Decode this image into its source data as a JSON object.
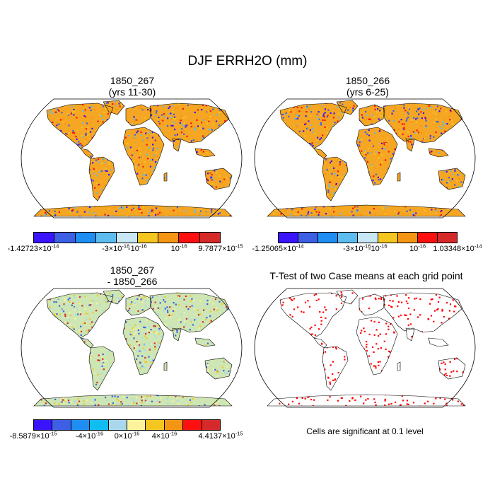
{
  "figure": {
    "title": "DJF ERRH2O (mm)"
  },
  "panels": [
    {
      "id": "case1",
      "title": "1850_267\n(yrs 11-30)",
      "colorbar": {
        "colors": [
          "#3b14ff",
          "#3c5fe6",
          "#1f8ef2",
          "#5dbdf0",
          "#c8e7f5",
          "#f5c620",
          "#f49513",
          "#ff1010",
          "#d62a2a"
        ],
        "labels": [
          {
            "base": "-1.42723",
            "exp": "-14",
            "pos": 0.0
          },
          {
            "base": "-3",
            "exp": "-16",
            "pos": 0.44
          },
          {
            "base": "-10",
            "exp": "",
            "pos": 0.556,
            "exp_only": "-16"
          },
          {
            "base": "10",
            "exp": "",
            "pos": 0.778,
            "exp_only": "-16"
          },
          {
            "base": "9.7877",
            "exp": "-15",
            "pos": 1.0
          }
        ]
      },
      "dominant_color": "#f5a623",
      "speckle_colors": [
        "#f5c620",
        "#f49513",
        "#ff1010",
        "#3c5fe6",
        "#5dbdf0",
        "#3b14ff"
      ]
    },
    {
      "id": "case2",
      "title": "1850_266\n(yrs 6-25)",
      "colorbar": {
        "colors": [
          "#3b14ff",
          "#3c5fe6",
          "#1f8ef2",
          "#5dbdf0",
          "#c8e7f5",
          "#f5c620",
          "#f49513",
          "#ff1010",
          "#d62a2a"
        ],
        "labels": [
          {
            "base": "-1.25065",
            "exp": "-14",
            "pos": 0.0
          },
          {
            "base": "-3",
            "exp": "-16",
            "pos": 0.44
          },
          {
            "base": "-10",
            "exp": "",
            "pos": 0.556,
            "exp_only": "-16"
          },
          {
            "base": "10",
            "exp": "",
            "pos": 0.778,
            "exp_only": "-16"
          },
          {
            "base": "1.03348",
            "exp": "-14",
            "pos": 1.0
          }
        ]
      },
      "dominant_color": "#f5a623",
      "speckle_colors": [
        "#f5c620",
        "#f49513",
        "#ff1010",
        "#3c5fe6",
        "#5dbdf0",
        "#3b14ff"
      ]
    },
    {
      "id": "diff",
      "title": "1850_267\n- 1850_266",
      "colorbar": {
        "colors": [
          "#3b14ff",
          "#3c5fe6",
          "#1f8ef2",
          "#10bdf0",
          "#a9d8ee",
          "#fcf39c",
          "#f5c620",
          "#f49513",
          "#ff1010",
          "#d62a2a"
        ],
        "labels": [
          {
            "base": "-8.5879",
            "exp": "-15",
            "pos": 0.0
          },
          {
            "base": "-4",
            "exp": "-16",
            "pos": 0.3
          },
          {
            "base": "0",
            "exp": "-16",
            "pos": 0.5
          },
          {
            "base": "4",
            "exp": "-16",
            "pos": 0.7
          },
          {
            "base": "4.4137",
            "exp": "-15",
            "pos": 1.0
          }
        ]
      },
      "dominant_color": "#cde6b4",
      "speckle_colors": [
        "#fcf39c",
        "#a9d8ee",
        "#f5c620",
        "#3c5fe6",
        "#d62a2a"
      ]
    },
    {
      "id": "ttest",
      "title": "T-Test of two Case means at each grid point",
      "note": "Cells are significant at 0.1 level",
      "dominant_color": "#ffffff",
      "speckle_colors": [
        "#ff0000"
      ]
    }
  ]
}
